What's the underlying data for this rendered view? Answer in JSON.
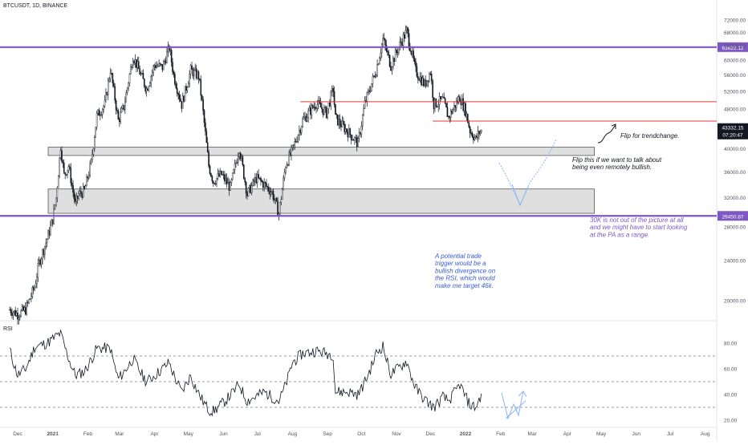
{
  "header": {
    "symbol": "BTCUSDT",
    "timeframe": "1D",
    "exchange": "BINANCE",
    "separator": ", "
  },
  "rsi_label": "RSI",
  "colors": {
    "candle": "#131722",
    "horizontal_level": "#7e57c2",
    "resistance_line": "#e53935",
    "zone_fill": "#d9d9d9",
    "zone_border": "#555555",
    "note_blue": "#3a5bd9",
    "note_purple": "#7e57c2",
    "note_dark": "#131722",
    "sketch_arrow": "#8ab4f8",
    "price_tag_bg": "#131722"
  },
  "chart_data": {
    "type": "line",
    "title": "",
    "price_axis": {
      "scale": "log",
      "ylim": [
        18000,
        74000
      ],
      "ticks": [
        "72000.00",
        "68000.00",
        "64000.00",
        "60000.00",
        "56000.00",
        "52000.00",
        "48000.00",
        "44000.00",
        "40000.00",
        "36000.00",
        "32000.00",
        "28000.00",
        "24000.00",
        "20000.00"
      ]
    },
    "time_axis": {
      "ticks": [
        "Dec",
        "2021",
        "Feb",
        "Mar",
        "Apr",
        "May",
        "Jun",
        "Jul",
        "Aug",
        "Sep",
        "Oct",
        "Nov",
        "Dec",
        "2022",
        "Feb",
        "Mar",
        "Apr",
        "May",
        "Jun",
        "Jul",
        "Aug"
      ]
    },
    "price_series": {
      "name": "BTCUSDT",
      "approximate_daily_close": [
        [
          "2020-11-24",
          19200
        ],
        [
          "2020-12-01",
          18800
        ],
        [
          "2020-12-08",
          19200
        ],
        [
          "2020-12-16",
          21300
        ],
        [
          "2020-12-20",
          23800
        ],
        [
          "2020-12-27",
          26500
        ],
        [
          "2021-01-01",
          29000
        ],
        [
          "2021-01-04",
          32000
        ],
        [
          "2021-01-08",
          40500
        ],
        [
          "2021-01-11",
          35500
        ],
        [
          "2021-01-15",
          37000
        ],
        [
          "2021-01-21",
          31000
        ],
        [
          "2021-01-24",
          32500
        ],
        [
          "2021-01-29",
          33000
        ],
        [
          "2021-02-04",
          37500
        ],
        [
          "2021-02-09",
          46500
        ],
        [
          "2021-02-16",
          49000
        ],
        [
          "2021-02-21",
          57500
        ],
        [
          "2021-02-28",
          45500
        ],
        [
          "2021-03-05",
          48500
        ],
        [
          "2021-03-13",
          61200
        ],
        [
          "2021-03-25",
          52500
        ],
        [
          "2021-04-01",
          58700
        ],
        [
          "2021-04-08",
          58000
        ],
        [
          "2021-04-14",
          63500
        ],
        [
          "2021-04-18",
          56000
        ],
        [
          "2021-04-25",
          49000
        ],
        [
          "2021-05-03",
          57200
        ],
        [
          "2021-05-10",
          55800
        ],
        [
          "2021-05-13",
          49500
        ],
        [
          "2021-05-19",
          37000
        ],
        [
          "2021-05-23",
          34500
        ],
        [
          "2021-05-30",
          35600
        ],
        [
          "2021-06-07",
          33500
        ],
        [
          "2021-06-15",
          40200
        ],
        [
          "2021-06-22",
          32500
        ],
        [
          "2021-06-30",
          35000
        ],
        [
          "2021-07-07",
          34000
        ],
        [
          "2021-07-14",
          32800
        ],
        [
          "2021-07-20",
          29800
        ],
        [
          "2021-07-26",
          37200
        ],
        [
          "2021-08-01",
          39800
        ],
        [
          "2021-08-10",
          45500
        ],
        [
          "2021-08-22",
          49300
        ],
        [
          "2021-08-31",
          47100
        ],
        [
          "2021-09-06",
          52600
        ],
        [
          "2021-09-08",
          46000
        ],
        [
          "2021-09-20",
          43000
        ],
        [
          "2021-09-28",
          41000
        ],
        [
          "2021-10-04",
          49200
        ],
        [
          "2021-10-14",
          57300
        ],
        [
          "2021-10-20",
          66000
        ],
        [
          "2021-10-27",
          58500
        ],
        [
          "2021-11-02",
          63000
        ],
        [
          "2021-11-10",
          68500
        ],
        [
          "2021-11-18",
          57000
        ],
        [
          "2021-11-26",
          53600
        ],
        [
          "2021-12-01",
          57000
        ],
        [
          "2021-12-04",
          49000
        ],
        [
          "2021-12-12",
          50000
        ],
        [
          "2021-12-17",
          46200
        ],
        [
          "2021-12-27",
          50700
        ],
        [
          "2022-01-01",
          47600
        ],
        [
          "2022-01-05",
          43500
        ],
        [
          "2022-01-10",
          41800
        ],
        [
          "2022-01-13",
          43100
        ],
        [
          "2022-01-15",
          43332
        ]
      ]
    },
    "rsi_series": {
      "name": "RSI",
      "ylim": [
        20,
        90
      ],
      "ticks": [
        "80.00",
        "60.00",
        "40.00",
        "20.00"
      ],
      "bands": [
        70,
        50,
        30
      ],
      "approximate_values": [
        [
          "2020-11-24",
          75
        ],
        [
          "2020-12-01",
          55
        ],
        [
          "2020-12-08",
          60
        ],
        [
          "2020-12-16",
          77
        ],
        [
          "2020-12-27",
          80
        ],
        [
          "2021-01-08",
          88
        ],
        [
          "2021-01-21",
          55
        ],
        [
          "2021-01-29",
          58
        ],
        [
          "2021-02-09",
          76
        ],
        [
          "2021-02-21",
          76
        ],
        [
          "2021-02-28",
          52
        ],
        [
          "2021-03-13",
          68
        ],
        [
          "2021-03-25",
          50
        ],
        [
          "2021-04-14",
          65
        ],
        [
          "2021-04-25",
          42
        ],
        [
          "2021-05-03",
          55
        ],
        [
          "2021-05-19",
          28
        ],
        [
          "2021-05-23",
          27
        ],
        [
          "2021-06-15",
          48
        ],
        [
          "2021-06-22",
          35
        ],
        [
          "2021-07-07",
          42
        ],
        [
          "2021-07-20",
          35
        ],
        [
          "2021-08-01",
          65
        ],
        [
          "2021-08-10",
          72
        ],
        [
          "2021-08-22",
          74
        ],
        [
          "2021-09-06",
          71
        ],
        [
          "2021-09-08",
          42
        ],
        [
          "2021-09-20",
          42
        ],
        [
          "2021-09-28",
          40
        ],
        [
          "2021-10-14",
          72
        ],
        [
          "2021-10-20",
          78
        ],
        [
          "2021-10-27",
          56
        ],
        [
          "2021-11-10",
          66
        ],
        [
          "2021-11-18",
          45
        ],
        [
          "2021-11-26",
          36
        ],
        [
          "2021-12-04",
          30
        ],
        [
          "2021-12-12",
          38
        ],
        [
          "2021-12-17",
          35
        ],
        [
          "2021-12-27",
          48
        ],
        [
          "2022-01-05",
          32
        ],
        [
          "2022-01-10",
          30
        ],
        [
          "2022-01-15",
          40
        ]
      ]
    },
    "horizontal_levels": [
      {
        "price": 63622.12,
        "label": "63622.12"
      },
      {
        "price": 29450.87,
        "label": "29450.87"
      }
    ],
    "resistance_lines": [
      {
        "price": 49600,
        "from": "2021-08-08"
      },
      {
        "price": 45400,
        "from": "2021-12-03"
      }
    ],
    "zones": [
      {
        "from": "2020-12-28",
        "to": "2022-04-25",
        "low": 38800,
        "high": 40300
      },
      {
        "from": "2020-12-28",
        "to": "2022-04-25",
        "low": 29800,
        "high": 33300
      }
    ],
    "current_price": {
      "value": 43332.15,
      "label": "43332.15",
      "countdown": "07:20:47"
    },
    "annotations": [
      {
        "id": "flip_trend",
        "text": "Flip for trendchange."
      },
      {
        "id": "flip_bullish",
        "text": "Flip this if we want to talk about being even remotely bullish."
      },
      {
        "id": "range_note",
        "text": "30K is not out of the picture at all and we might have to start looking at the PA as a range."
      },
      {
        "id": "trade_trigger",
        "text": "A potential trade trigger would be a bullish divergence on the RSI, which would make me target 46k."
      }
    ]
  }
}
